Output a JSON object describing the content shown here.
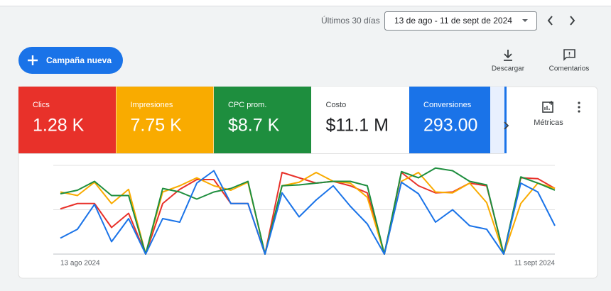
{
  "header": {
    "period_label": "Últimos 30 días",
    "date_range": "13 de ago - 11 de sept de 2024"
  },
  "new_campaign_button": "Campaña nueva",
  "actions": [
    "Descargar",
    "Comentarios"
  ],
  "metrics": [
    {
      "label": "Clics",
      "value": "1.28 K",
      "color": "#e8312a"
    },
    {
      "label": "Impresiones",
      "value": "7.75 K",
      "color": "#f9ab00"
    },
    {
      "label": "CPC prom.",
      "value": "$8.7 K",
      "color": "#1e8e3e"
    },
    {
      "label": "Costo",
      "value": "$11.1 M",
      "color": "#ffffff"
    },
    {
      "label": "Conversiones",
      "value": "293.00",
      "color": "#1a73e8"
    }
  ],
  "metrics_button": "Métricas",
  "chart_data": {
    "type": "line",
    "categories": [
      "13 ago 2024",
      null,
      null,
      null,
      null,
      null,
      null,
      null,
      null,
      null,
      null,
      null,
      null,
      null,
      null,
      null,
      null,
      null,
      null,
      null,
      null,
      null,
      null,
      null,
      null,
      null,
      null,
      null,
      null,
      "11 sept 2024"
    ],
    "ylim": [
      0,
      100
    ],
    "yticks": [
      0,
      50,
      100
    ],
    "grid": true,
    "series": [
      {
        "color": "#e8312a",
        "values": [
          51,
          57,
          57,
          30,
          46,
          0,
          57,
          73,
          84,
          84,
          57,
          57,
          0,
          92,
          86,
          80,
          82,
          77,
          69,
          0,
          92,
          77,
          69,
          70,
          80,
          77,
          0,
          86,
          85,
          74
        ]
      },
      {
        "color": "#f9ab00",
        "values": [
          70,
          66,
          81,
          57,
          73,
          0,
          70,
          77,
          86,
          77,
          72,
          81,
          0,
          77,
          81,
          92,
          82,
          80,
          64,
          0,
          82,
          92,
          70,
          69,
          80,
          58,
          0,
          57,
          80,
          74
        ]
      },
      {
        "color": "#1e8e3e",
        "values": [
          68,
          72,
          82,
          66,
          66,
          0,
          74,
          70,
          62,
          70,
          74,
          82,
          0,
          77,
          78,
          80,
          82,
          82,
          77,
          0,
          93,
          86,
          97,
          94,
          82,
          78,
          0,
          87,
          80,
          72
        ]
      },
      {
        "color": "#1a73e8",
        "values": [
          18,
          28,
          56,
          14,
          40,
          0,
          40,
          36,
          80,
          94,
          57,
          57,
          0,
          69,
          42,
          61,
          77,
          54,
          34,
          0,
          81,
          68,
          36,
          50,
          32,
          28,
          0,
          80,
          70,
          32
        ]
      }
    ]
  }
}
